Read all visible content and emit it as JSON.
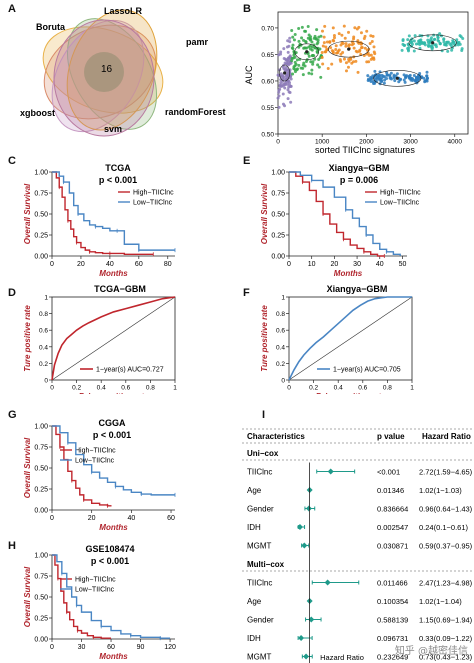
{
  "panels": {
    "A": {
      "label": "A",
      "sets": [
        "LassoLR",
        "Boruta",
        "pamr",
        "xgboost",
        "randomForest",
        "svm"
      ],
      "center_count": "16"
    },
    "B": {
      "label": "B",
      "ylabel": "AUC",
      "xlabel": "sorted TIIClnc signatures"
    },
    "C": {
      "label": "C",
      "title": "TCGA",
      "pvalue": "p < 0.001"
    },
    "D": {
      "label": "D",
      "title": "TCGA−GBM",
      "legend": "1−year(s)  AUC=0.727"
    },
    "E": {
      "label": "E",
      "title": "Xiangya−GBM",
      "pvalue": "p = 0.006"
    },
    "F": {
      "label": "F",
      "title": "Xiangya−GBM",
      "legend": "1−year(s)  AUC=0.705"
    },
    "G": {
      "label": "G",
      "title": "CGGA",
      "pvalue": "p < 0.001"
    },
    "H": {
      "label": "H",
      "title": "GSE108474",
      "pvalue": "p < 0.001"
    },
    "I": {
      "label": "I",
      "headers": {
        "characteristics": "Characteristics",
        "pvalue": "p value",
        "hr": "Hazard Ratio"
      },
      "xlabel": "Hazard Ratio",
      "groups": [
        {
          "title": "Uni−cox",
          "rows": [
            {
              "name": "TIIClnc",
              "p": "<0.001",
              "hr": "2.72(1.59−4.65)"
            },
            {
              "name": "Age",
              "p": "0.01346",
              "hr": "1.02(1−1.03)"
            },
            {
              "name": "Gender",
              "p": "0.836664",
              "hr": "0.96(0.64−1.43)"
            },
            {
              "name": "IDH",
              "p": "0.002547",
              "hr": "0.24(0.1−0.61)"
            },
            {
              "name": "MGMT",
              "p": "0.030871",
              "hr": "0.59(0.37−0.95)"
            }
          ]
        },
        {
          "title": "Multi−cox",
          "rows": [
            {
              "name": "TIIClnc",
              "p": "0.011466",
              "hr": "2.47(1.23−4.98)"
            },
            {
              "name": "Age",
              "p": "0.100354",
              "hr": "1.02(1−1.04)"
            },
            {
              "name": "Gender",
              "p": "0.588139",
              "hr": "1.15(0.69−1.94)"
            },
            {
              "name": "IDH",
              "p": "0.096731",
              "hr": "0.33(0.09−1.22)"
            },
            {
              "name": "MGMT",
              "p": "0.232649",
              "hr": "0.73(0.43−1.23)"
            }
          ]
        }
      ]
    }
  },
  "watermark": "知乎 @越密佳信",
  "colors": {
    "high": "#c0262d",
    "low": "#4a86c4",
    "roc_d": "#c0262d",
    "roc_f": "#4a86c4",
    "forest": "#1f9a8a",
    "venn": [
      "#e8b24a",
      "#d98b6a",
      "#8fb77f",
      "#c79bc4",
      "#e0a33b",
      "#b87aa0"
    ],
    "scatter": [
      "#8d7bb8",
      "#35a84a",
      "#ef8a1f",
      "#2b7bbd",
      "#2fb9a8"
    ]
  },
  "chart_data": [
    {
      "type": "scatter",
      "panel": "B",
      "title": "",
      "xlabel": "sorted TIIClnc signatures",
      "ylabel": "AUC",
      "xlim": [
        0,
        4300
      ],
      "ylim": [
        0.5,
        0.73
      ],
      "xticks": [
        0,
        1000,
        2000,
        3000,
        4000
      ],
      "yticks": [
        0.5,
        0.55,
        0.6,
        0.65,
        0.7
      ],
      "series": [
        {
          "x_range": [
            0,
            300
          ],
          "center": 0.615,
          "spread": 0.05
        },
        {
          "x_range": [
            300,
            1000
          ],
          "center": 0.655,
          "spread": 0.04
        },
        {
          "x_range": [
            1000,
            2200
          ],
          "center": 0.66,
          "spread": 0.035
        },
        {
          "x_range": [
            2000,
            3400
          ],
          "center": 0.605,
          "spread": 0.01
        },
        {
          "x_range": [
            2800,
            4200
          ],
          "center": 0.672,
          "spread": 0.015
        }
      ]
    },
    {
      "type": "line",
      "panel": "C",
      "title": "TCGA",
      "xlabel": "Months",
      "ylabel": "Overall Survival",
      "xlim": [
        0,
        85
      ],
      "ylim": [
        0,
        1
      ],
      "xticks": [
        0,
        20,
        40,
        60,
        80
      ],
      "yticks": [
        0,
        0.25,
        0.5,
        0.75,
        1
      ],
      "series": [
        {
          "name": "High−TIIClnc",
          "x": [
            0,
            3,
            5,
            7,
            9,
            11,
            13,
            15,
            17,
            20,
            23,
            26,
            30,
            35,
            40,
            50,
            60,
            70
          ],
          "y": [
            1,
            0.93,
            0.82,
            0.7,
            0.55,
            0.42,
            0.32,
            0.23,
            0.16,
            0.1,
            0.07,
            0.05,
            0.04,
            0.03,
            0.03,
            0.02,
            0.02,
            0.02
          ]
        },
        {
          "name": "Low−TIIClnc",
          "x": [
            0,
            5,
            8,
            12,
            15,
            18,
            22,
            26,
            30,
            35,
            40,
            45,
            50,
            55,
            60,
            70,
            80,
            85
          ],
          "y": [
            1,
            0.95,
            0.88,
            0.75,
            0.6,
            0.5,
            0.42,
            0.37,
            0.35,
            0.33,
            0.3,
            0.3,
            0.14,
            0.14,
            0.07,
            0.07,
            0.07,
            0.07
          ]
        }
      ]
    },
    {
      "type": "line",
      "panel": "D",
      "title": "TCGA−GBM",
      "xlabel": "False positive rate",
      "ylabel": "Ture positive rate",
      "xlim": [
        0,
        1
      ],
      "ylim": [
        0,
        1
      ],
      "xticks": [
        0,
        0.2,
        0.4,
        0.6,
        0.8,
        1
      ],
      "yticks": [
        0,
        0.2,
        0.4,
        0.6,
        0.8,
        1
      ],
      "series": [
        {
          "name": "1−year(s)",
          "x": [
            0,
            0.02,
            0.05,
            0.08,
            0.12,
            0.16,
            0.2,
            0.25,
            0.3,
            0.4,
            0.5,
            0.6,
            0.7,
            0.8,
            0.9,
            1
          ],
          "y": [
            0,
            0.18,
            0.32,
            0.42,
            0.5,
            0.55,
            0.6,
            0.65,
            0.69,
            0.76,
            0.82,
            0.86,
            0.9,
            0.94,
            0.98,
            1
          ]
        }
      ]
    },
    {
      "type": "line",
      "panel": "E",
      "title": "Xiangya−GBM",
      "xlabel": "Months",
      "ylabel": "Overall Survival",
      "xlim": [
        0,
        52
      ],
      "ylim": [
        0,
        1
      ],
      "xticks": [
        0,
        10,
        20,
        30,
        40,
        50
      ],
      "yticks": [
        0,
        0.25,
        0.5,
        0.75,
        1
      ],
      "series": [
        {
          "name": "High−TIIClnc",
          "x": [
            0,
            3,
            6,
            9,
            12,
            15,
            18,
            21,
            24,
            27,
            30,
            33,
            36,
            39,
            42
          ],
          "y": [
            1,
            0.95,
            0.88,
            0.78,
            0.65,
            0.5,
            0.38,
            0.28,
            0.2,
            0.13,
            0.09,
            0.05,
            0.02,
            0,
            0
          ]
        },
        {
          "name": "Low−TIIClnc",
          "x": [
            0,
            5,
            10,
            15,
            20,
            25,
            28,
            31,
            34,
            37,
            40,
            43,
            46,
            49
          ],
          "y": [
            1,
            0.96,
            0.9,
            0.82,
            0.7,
            0.55,
            0.45,
            0.35,
            0.25,
            0.15,
            0.08,
            0.05,
            0.02,
            0
          ]
        }
      ]
    },
    {
      "type": "line",
      "panel": "F",
      "title": "Xiangya−GBM",
      "xlabel": "False positive rate",
      "ylabel": "Ture positive rate",
      "xlim": [
        0,
        1
      ],
      "ylim": [
        0,
        1
      ],
      "xticks": [
        0,
        0.2,
        0.4,
        0.6,
        0.8,
        1
      ],
      "yticks": [
        0,
        0.2,
        0.4,
        0.6,
        0.8,
        1
      ],
      "series": [
        {
          "name": "1−year(s)",
          "x": [
            0,
            0.04,
            0.08,
            0.12,
            0.17,
            0.22,
            0.28,
            0.34,
            0.4,
            0.46,
            0.52,
            0.58,
            0.64,
            0.7,
            0.8,
            0.9,
            1
          ],
          "y": [
            0,
            0.12,
            0.22,
            0.3,
            0.38,
            0.45,
            0.52,
            0.6,
            0.68,
            0.76,
            0.84,
            0.9,
            0.95,
            0.98,
            1,
            1,
            1
          ]
        }
      ]
    },
    {
      "type": "line",
      "panel": "G",
      "title": "CGGA",
      "xlabel": "Months",
      "ylabel": "Overall Survival",
      "xlim": [
        0,
        62
      ],
      "ylim": [
        0,
        1
      ],
      "xticks": [
        0,
        20,
        40,
        60
      ],
      "yticks": [
        0,
        0.25,
        0.5,
        0.75,
        1
      ],
      "series": [
        {
          "name": "High−TIIClnc",
          "x": [
            0,
            2,
            4,
            6,
            8,
            10,
            12,
            14,
            16,
            20,
            24,
            28,
            30
          ],
          "y": [
            1,
            0.9,
            0.75,
            0.6,
            0.46,
            0.35,
            0.26,
            0.18,
            0.12,
            0.08,
            0.06,
            0.05,
            0.05
          ]
        },
        {
          "name": "Low−TIIClnc",
          "x": [
            0,
            4,
            8,
            12,
            16,
            20,
            24,
            28,
            32,
            36,
            40,
            45,
            50,
            55,
            62
          ],
          "y": [
            1,
            0.92,
            0.8,
            0.66,
            0.54,
            0.45,
            0.38,
            0.33,
            0.28,
            0.24,
            0.21,
            0.19,
            0.18,
            0.18,
            0.18
          ]
        }
      ]
    },
    {
      "type": "line",
      "panel": "H",
      "title": "GSE108474",
      "xlabel": "Months",
      "ylabel": "Overall Survival",
      "xlim": [
        0,
        125
      ],
      "ylim": [
        0,
        1
      ],
      "xticks": [
        0,
        30,
        60,
        90,
        120
      ],
      "yticks": [
        0,
        0.25,
        0.5,
        0.75,
        1
      ],
      "series": [
        {
          "name": "High−TIIClnc",
          "x": [
            0,
            3,
            6,
            9,
            12,
            15,
            18,
            22,
            26,
            30,
            36,
            42,
            50,
            60
          ],
          "y": [
            1,
            0.88,
            0.72,
            0.57,
            0.43,
            0.32,
            0.23,
            0.15,
            0.1,
            0.07,
            0.04,
            0.02,
            0.01,
            0.01
          ]
        },
        {
          "name": "Low−TIIClnc",
          "x": [
            0,
            5,
            10,
            15,
            20,
            25,
            30,
            40,
            50,
            60,
            70,
            80,
            90,
            100,
            110,
            120
          ],
          "y": [
            1,
            0.92,
            0.78,
            0.62,
            0.5,
            0.4,
            0.32,
            0.22,
            0.15,
            0.1,
            0.06,
            0.04,
            0.02,
            0.02,
            0.01,
            0.01
          ]
        }
      ]
    },
    {
      "type": "scatter",
      "panel": "I",
      "title": "",
      "xlabel": "Hazard Ratio",
      "xlim": [
        0,
        5
      ],
      "xticks": [
        0,
        1,
        2,
        3,
        4,
        5
      ],
      "reference": 1,
      "series": [
        {
          "name": "Uni−cox",
          "hr": [
            2.72,
            1.02,
            0.96,
            0.24,
            0.59
          ],
          "lower": [
            1.59,
            1,
            0.64,
            0.1,
            0.37
          ],
          "upper": [
            4.65,
            1.03,
            1.43,
            0.61,
            0.95
          ]
        },
        {
          "name": "Multi−cox",
          "hr": [
            2.47,
            1.02,
            1.15,
            0.33,
            0.73
          ],
          "lower": [
            1.23,
            1,
            0.69,
            0.09,
            0.43
          ],
          "upper": [
            4.98,
            1.04,
            1.94,
            1.22,
            1.23
          ]
        }
      ]
    }
  ]
}
